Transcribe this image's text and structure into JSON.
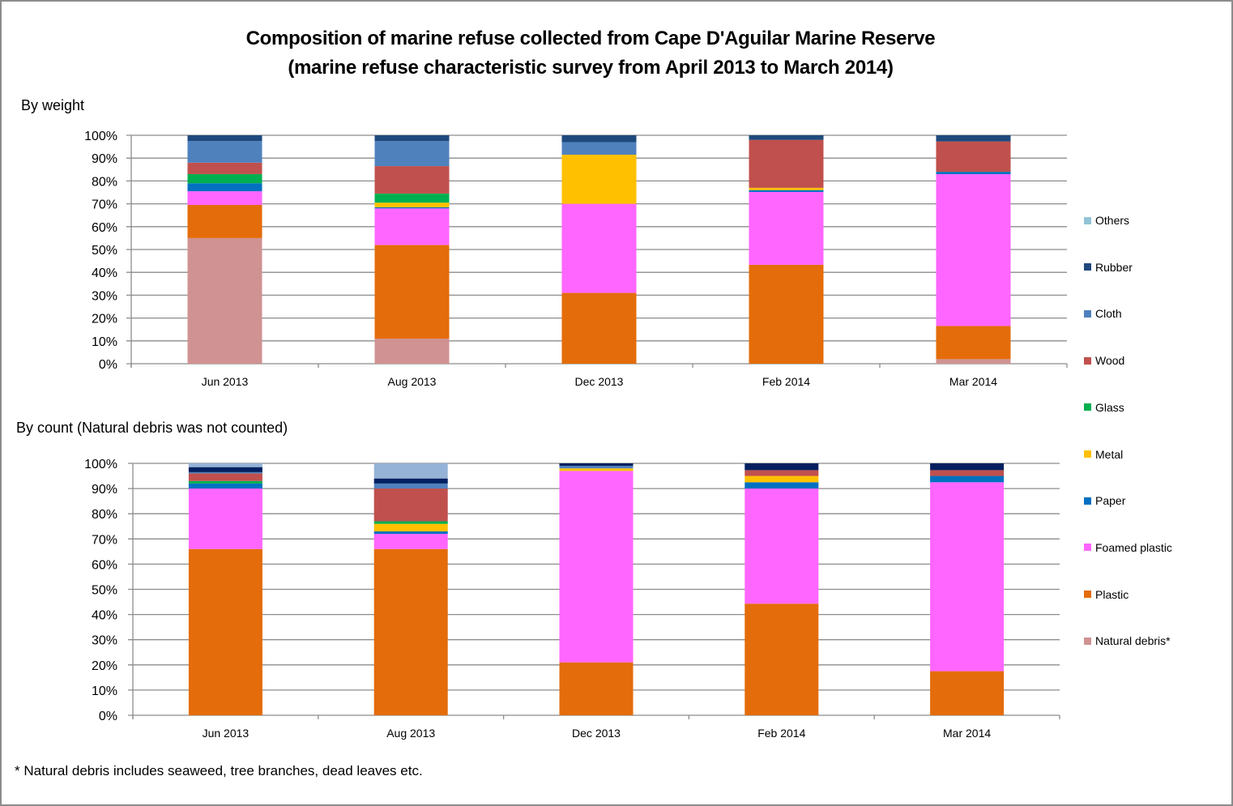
{
  "title_line1": "Composition of marine refuse collected from Cape D'Aguilar Marine Reserve",
  "title_line2": "(marine refuse characteristic survey from April 2013 to March 2014)",
  "footnote": "* Natural debris includes seaweed, tree branches, dead leaves etc.",
  "legend": [
    {
      "name": "Others",
      "color": "#93C4D6"
    },
    {
      "name": "Rubber",
      "color": "#1F497D"
    },
    {
      "name": "Cloth",
      "color": "#4F81BD"
    },
    {
      "name": "Wood",
      "color": "#C0504D"
    },
    {
      "name": "Glass",
      "color": "#00B050"
    },
    {
      "name": "Metal",
      "color": "#FFC000"
    },
    {
      "name": "Paper",
      "color": "#0070C0"
    },
    {
      "name": "Foamed plastic",
      "color": "#FF66FF"
    },
    {
      "name": "Plastic",
      "color": "#E46C0A"
    },
    {
      "name": "Natural debris*",
      "color": "#D09292"
    }
  ],
  "chart_data": [
    {
      "type": "bar",
      "stacked": "percent",
      "title": "By weight",
      "xlabel": "",
      "ylabel": "",
      "ylim": [
        0,
        100
      ],
      "yticks": [
        "0%",
        "10%",
        "20%",
        "30%",
        "40%",
        "50%",
        "60%",
        "70%",
        "80%",
        "90%",
        "100%"
      ],
      "grid": true,
      "legend_position": "right",
      "categories": [
        "Jun 2013",
        "Aug 2013",
        "Dec 2013",
        "Feb 2014",
        "Mar 2014"
      ],
      "series": [
        {
          "name": "Natural debris*",
          "color": "#D09292",
          "values": [
            55,
            11,
            0,
            0,
            2
          ]
        },
        {
          "name": "Plastic",
          "color": "#E46C0A",
          "values": [
            14.5,
            41,
            31,
            43.3,
            14.5
          ]
        },
        {
          "name": "Foamed plastic",
          "color": "#FF66FF",
          "values": [
            6,
            16,
            39,
            31.9,
            66.5
          ]
        },
        {
          "name": "Paper",
          "color": "#0070C0",
          "values": [
            3.5,
            0.5,
            0,
            0.8,
            1
          ]
        },
        {
          "name": "Metal",
          "color": "#FFC000",
          "values": [
            0,
            2,
            21.5,
            1,
            0
          ]
        },
        {
          "name": "Glass",
          "color": "#00B050",
          "values": [
            4,
            4,
            0,
            0,
            0
          ]
        },
        {
          "name": "Wood",
          "color": "#C0504D",
          "values": [
            5,
            12,
            0,
            21,
            13.3
          ]
        },
        {
          "name": "Cloth",
          "color": "#4F81BD",
          "values": [
            9.5,
            11,
            5.5,
            0,
            0
          ]
        },
        {
          "name": "Rubber",
          "color": "#1F497D",
          "values": [
            2.5,
            2.5,
            3,
            2,
            2.7
          ]
        },
        {
          "name": "Others",
          "color": "#93C4D6",
          "values": [
            0,
            0,
            0,
            0,
            0
          ]
        }
      ]
    },
    {
      "type": "bar",
      "stacked": "percent",
      "title": "By count (Natural debris was not counted)",
      "xlabel": "",
      "ylabel": "",
      "ylim": [
        0,
        100
      ],
      "yticks": [
        "0%",
        "10%",
        "20%",
        "30%",
        "40%",
        "50%",
        "60%",
        "70%",
        "80%",
        "90%",
        "100%"
      ],
      "grid": true,
      "legend_position": "right",
      "categories": [
        "Jun 2013",
        "Aug 2013",
        "Dec 2013",
        "Feb 2014",
        "Mar 2014"
      ],
      "series": [
        {
          "name": "Natural debris*",
          "color": "#D09292",
          "values": [
            0,
            0,
            0,
            0,
            0
          ]
        },
        {
          "name": "Plastic",
          "color": "#E46C0A",
          "values": [
            66,
            66,
            21,
            44.3,
            17.5
          ]
        },
        {
          "name": "Foamed plastic",
          "color": "#FF66FF",
          "values": [
            24,
            6,
            76,
            45.7,
            75
          ]
        },
        {
          "name": "Paper",
          "color": "#0070C0",
          "values": [
            2,
            1,
            0,
            2.5,
            2.5
          ]
        },
        {
          "name": "Metal",
          "color": "#FFC000",
          "values": [
            0,
            3,
            1,
            2.5,
            0
          ]
        },
        {
          "name": "Glass",
          "color": "#00B050",
          "values": [
            1,
            1,
            0,
            0,
            0
          ]
        },
        {
          "name": "Wood",
          "color": "#C0504D",
          "values": [
            3,
            13,
            0,
            2.3,
            2.3
          ]
        },
        {
          "name": "Cloth",
          "color": "#4F81BD",
          "values": [
            0.5,
            2,
            1,
            0,
            0
          ]
        },
        {
          "name": "Rubber",
          "color": "#002060",
          "values": [
            2,
            2,
            1,
            2.7,
            2.7
          ]
        },
        {
          "name": "Others",
          "color": "#95B3D7",
          "values": [
            1.5,
            6,
            0,
            0,
            0
          ]
        }
      ]
    }
  ]
}
